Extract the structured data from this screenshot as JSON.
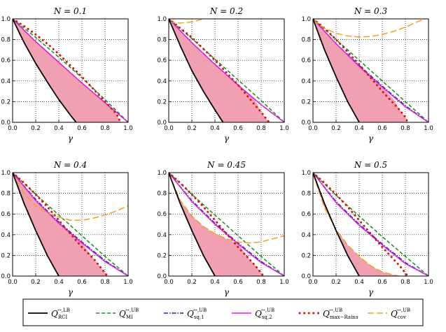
{
  "colors": {
    "rci_lb": "#000000",
    "mi_ub": "#1a8a1a",
    "sq1_ub": "#2020c8",
    "sq2_ub": "#e020e0",
    "maxrains_ub": "#dd1111",
    "cov_ub": "#f5a020",
    "fill": "#f0a0b0"
  },
  "legend": [
    {
      "key": "rci_lb",
      "main": "Q",
      "sub": "RCI",
      "sup": "↔,LB"
    },
    {
      "key": "mi_ub",
      "main": "Q",
      "sub": "MI",
      "sup": "↔,UB"
    },
    {
      "key": "sq1_ub",
      "main": "Q",
      "sub": "sq,1",
      "sup": "↔,UB"
    },
    {
      "key": "sq2_ub",
      "main": "Q",
      "sub": "sq,2",
      "sup": "↔,UB"
    },
    {
      "key": "maxrains_ub",
      "main": "Q",
      "sub": "max−Rains",
      "sup": "↔,UB"
    },
    {
      "key": "cov_ub",
      "main": "Q",
      "sub": "cov",
      "sup": "↔,UB"
    }
  ],
  "chart_data": [
    {
      "type": "line",
      "title": "N = 0.1",
      "xlabel": "γ",
      "xlim": [
        0,
        1
      ],
      "ylim": [
        0,
        1
      ],
      "xticks": [
        "0.0",
        "0.2",
        "0.4",
        "0.6",
        "0.8",
        "1.0"
      ],
      "yticks": [
        "0.0",
        "0.2",
        "0.4",
        "0.6",
        "0.8",
        "1.0"
      ],
      "series": [
        {
          "key": "rci_lb",
          "x": [
            0,
            0.1,
            0.2,
            0.3,
            0.4,
            0.5,
            0.55
          ],
          "y": [
            1,
            0.77,
            0.57,
            0.39,
            0.22,
            0.07,
            0
          ]
        },
        {
          "key": "mi_ub",
          "x": [
            0,
            0.2,
            0.4,
            0.6,
            0.8,
            1.0
          ],
          "y": [
            1,
            0.82,
            0.63,
            0.43,
            0.22,
            0
          ]
        },
        {
          "key": "sq1_ub",
          "x": [
            0,
            0.2,
            0.4,
            0.6,
            0.8,
            1.0
          ],
          "y": [
            1,
            0.78,
            0.58,
            0.38,
            0.19,
            0
          ]
        },
        {
          "key": "sq2_ub",
          "x": [
            0,
            0.2,
            0.4,
            0.6,
            0.8,
            1.0
          ],
          "y": [
            1,
            0.78,
            0.58,
            0.38,
            0.19,
            0
          ]
        },
        {
          "key": "maxrains_ub",
          "x": [
            0,
            0.1,
            0.2,
            0.3,
            0.4,
            0.5,
            0.6,
            0.7,
            0.8,
            0.85,
            0.9,
            0.92,
            0.94
          ],
          "y": [
            1,
            0.93,
            0.85,
            0.76,
            0.66,
            0.55,
            0.44,
            0.32,
            0.2,
            0.14,
            0.08,
            0.03,
            0
          ]
        },
        {
          "key": "fill_upper",
          "x": [
            0,
            0.2,
            0.4,
            0.6,
            0.8,
            0.85,
            0.9,
            0.92,
            0.94
          ],
          "y": [
            1,
            0.78,
            0.58,
            0.38,
            0.19,
            0.14,
            0.08,
            0.03,
            0
          ]
        }
      ]
    },
    {
      "type": "line",
      "title": "N = 0.2",
      "xlabel": "γ",
      "xlim": [
        0,
        1
      ],
      "ylim": [
        0,
        1
      ],
      "xticks": [
        "0.0",
        "0.2",
        "0.4",
        "0.6",
        "0.8",
        "1.0"
      ],
      "yticks": [
        "0.0",
        "0.2",
        "0.4",
        "0.6",
        "0.8",
        "1.0"
      ],
      "series": [
        {
          "key": "rci_lb",
          "x": [
            0,
            0.1,
            0.2,
            0.3,
            0.4,
            0.47
          ],
          "y": [
            1,
            0.74,
            0.5,
            0.3,
            0.12,
            0
          ]
        },
        {
          "key": "mi_ub",
          "x": [
            0,
            0.2,
            0.4,
            0.6,
            0.8,
            1.0
          ],
          "y": [
            1,
            0.81,
            0.61,
            0.41,
            0.21,
            0
          ]
        },
        {
          "key": "sq1_ub",
          "x": [
            0,
            0.2,
            0.4,
            0.6,
            0.8,
            1.0
          ],
          "y": [
            1,
            0.77,
            0.56,
            0.36,
            0.17,
            0
          ]
        },
        {
          "key": "sq2_ub",
          "x": [
            0,
            0.2,
            0.4,
            0.6,
            0.8,
            1.0
          ],
          "y": [
            1,
            0.77,
            0.56,
            0.36,
            0.17,
            0
          ]
        },
        {
          "key": "maxrains_ub",
          "x": [
            0,
            0.1,
            0.2,
            0.3,
            0.4,
            0.5,
            0.6,
            0.7,
            0.75,
            0.8,
            0.84,
            0.87
          ],
          "y": [
            1,
            0.91,
            0.82,
            0.71,
            0.6,
            0.48,
            0.36,
            0.23,
            0.16,
            0.1,
            0.04,
            0
          ]
        },
        {
          "key": "cov_ub",
          "x": [
            0,
            0.1,
            0.2,
            0.3,
            0.35
          ],
          "y": [
            0.97,
            0.96,
            0.97,
            1.0,
            1.03
          ]
        },
        {
          "key": "fill_upper",
          "x": [
            0,
            0.2,
            0.4,
            0.6,
            0.75,
            0.8,
            0.84,
            0.87
          ],
          "y": [
            1,
            0.77,
            0.56,
            0.36,
            0.21,
            0.1,
            0.04,
            0
          ]
        }
      ]
    },
    {
      "type": "line",
      "title": "N = 0.3",
      "xlabel": "γ",
      "xlim": [
        0,
        1
      ],
      "ylim": [
        0,
        1
      ],
      "xticks": [
        "0.0",
        "0.2",
        "0.4",
        "0.6",
        "0.8",
        "1.0"
      ],
      "yticks": [
        "0.0",
        "0.2",
        "0.4",
        "0.6",
        "0.8",
        "1.0"
      ],
      "series": [
        {
          "key": "rci_lb",
          "x": [
            0,
            0.1,
            0.2,
            0.3,
            0.4
          ],
          "y": [
            1,
            0.7,
            0.44,
            0.2,
            0
          ]
        },
        {
          "key": "mi_ub",
          "x": [
            0,
            0.2,
            0.4,
            0.6,
            0.8,
            1.0
          ],
          "y": [
            1,
            0.8,
            0.6,
            0.4,
            0.2,
            0
          ]
        },
        {
          "key": "sq1_ub",
          "x": [
            0,
            0.2,
            0.4,
            0.6,
            0.8,
            1.0
          ],
          "y": [
            1,
            0.76,
            0.55,
            0.35,
            0.16,
            0
          ]
        },
        {
          "key": "sq2_ub",
          "x": [
            0,
            0.2,
            0.4,
            0.6,
            0.8,
            1.0
          ],
          "y": [
            1,
            0.76,
            0.54,
            0.34,
            0.15,
            0
          ]
        },
        {
          "key": "maxrains_ub",
          "x": [
            0,
            0.1,
            0.2,
            0.3,
            0.4,
            0.5,
            0.6,
            0.7,
            0.75,
            0.8,
            0.82
          ],
          "y": [
            1,
            0.91,
            0.8,
            0.68,
            0.56,
            0.43,
            0.3,
            0.18,
            0.12,
            0.05,
            0
          ]
        },
        {
          "key": "cov_ub",
          "x": [
            0,
            0.1,
            0.2,
            0.3,
            0.4,
            0.5,
            0.6,
            0.7,
            0.8,
            0.9,
            0.97
          ],
          "y": [
            0.99,
            0.91,
            0.86,
            0.835,
            0.825,
            0.83,
            0.85,
            0.88,
            0.92,
            0.97,
            1.0
          ]
        },
        {
          "key": "fill_upper",
          "x": [
            0,
            0.2,
            0.4,
            0.6,
            0.7,
            0.75,
            0.8,
            0.82
          ],
          "y": [
            1,
            0.76,
            0.54,
            0.34,
            0.22,
            0.12,
            0.05,
            0
          ]
        }
      ]
    },
    {
      "type": "line",
      "title": "N = 0.4",
      "xlabel": "γ",
      "xlim": [
        0,
        1
      ],
      "ylim": [
        0,
        1
      ],
      "xticks": [
        "0.0",
        "0.2",
        "0.4",
        "0.6",
        "0.8",
        "1.0"
      ],
      "yticks": [
        "0.0",
        "0.2",
        "0.4",
        "0.6",
        "0.8",
        "1.0"
      ],
      "series": [
        {
          "key": "rci_lb",
          "x": [
            0,
            0.1,
            0.2,
            0.3,
            0.4
          ],
          "y": [
            1,
            0.7,
            0.44,
            0.2,
            0
          ]
        },
        {
          "key": "mi_ub",
          "x": [
            0,
            0.2,
            0.4,
            0.6,
            0.8,
            1.0
          ],
          "y": [
            1,
            0.79,
            0.59,
            0.39,
            0.19,
            0
          ]
        },
        {
          "key": "sq1_ub",
          "x": [
            0,
            0.2,
            0.4,
            0.6,
            0.8,
            1.0
          ],
          "y": [
            1,
            0.74,
            0.52,
            0.33,
            0.15,
            0
          ]
        },
        {
          "key": "sq2_ub",
          "x": [
            0,
            0.2,
            0.4,
            0.6,
            0.8,
            1.0
          ],
          "y": [
            1,
            0.73,
            0.51,
            0.32,
            0.14,
            0
          ]
        },
        {
          "key": "maxrains_ub",
          "x": [
            0,
            0.1,
            0.2,
            0.3,
            0.4,
            0.5,
            0.6,
            0.7,
            0.75,
            0.8,
            0.82
          ],
          "y": [
            1,
            0.9,
            0.79,
            0.67,
            0.54,
            0.41,
            0.28,
            0.17,
            0.1,
            0.03,
            0
          ]
        },
        {
          "key": "cov_ub",
          "x": [
            0,
            0.1,
            0.2,
            0.3,
            0.4,
            0.5,
            0.6,
            0.7,
            0.8,
            0.9,
            1.0
          ],
          "y": [
            0.99,
            0.8,
            0.68,
            0.61,
            0.57,
            0.54,
            0.54,
            0.56,
            0.59,
            0.63,
            0.68
          ]
        },
        {
          "key": "fill_upper",
          "x": [
            0,
            0.2,
            0.4,
            0.6,
            0.7,
            0.75,
            0.8,
            0.82
          ],
          "y": [
            1,
            0.73,
            0.51,
            0.32,
            0.17,
            0.1,
            0.03,
            0
          ]
        }
      ]
    },
    {
      "type": "line",
      "title": "N = 0.45",
      "xlabel": "γ",
      "xlim": [
        0,
        1
      ],
      "ylim": [
        0,
        1
      ],
      "xticks": [
        "0.0",
        "0.2",
        "0.4",
        "0.6",
        "0.8",
        "1.0"
      ],
      "yticks": [
        "0.0",
        "0.2",
        "0.4",
        "0.6",
        "0.8",
        "1.0"
      ],
      "series": [
        {
          "key": "rci_lb",
          "x": [
            0,
            0.1,
            0.2,
            0.3,
            0.4
          ],
          "y": [
            1,
            0.7,
            0.44,
            0.2,
            0
          ]
        },
        {
          "key": "mi_ub",
          "x": [
            0,
            0.2,
            0.4,
            0.6,
            0.8,
            1.0
          ],
          "y": [
            1,
            0.79,
            0.59,
            0.39,
            0.19,
            0
          ]
        },
        {
          "key": "sq1_ub",
          "x": [
            0,
            0.2,
            0.4,
            0.6,
            0.8,
            1.0
          ],
          "y": [
            1,
            0.73,
            0.51,
            0.32,
            0.14,
            0
          ]
        },
        {
          "key": "sq2_ub",
          "x": [
            0,
            0.2,
            0.4,
            0.6,
            0.8,
            1.0
          ],
          "y": [
            1,
            0.72,
            0.5,
            0.31,
            0.13,
            0
          ]
        },
        {
          "key": "maxrains_ub",
          "x": [
            0,
            0.1,
            0.2,
            0.3,
            0.4,
            0.5,
            0.6,
            0.7,
            0.75,
            0.8,
            0.82
          ],
          "y": [
            1,
            0.9,
            0.79,
            0.67,
            0.54,
            0.41,
            0.28,
            0.16,
            0.1,
            0.03,
            0
          ]
        },
        {
          "key": "cov_ub",
          "x": [
            0,
            0.1,
            0.2,
            0.3,
            0.4,
            0.5,
            0.6,
            0.7,
            0.8,
            0.9,
            1.0
          ],
          "y": [
            0.99,
            0.73,
            0.58,
            0.48,
            0.41,
            0.36,
            0.33,
            0.32,
            0.33,
            0.36,
            0.39
          ]
        },
        {
          "key": "fill_upper",
          "x": [
            0,
            0.1,
            0.2,
            0.3,
            0.4,
            0.5,
            0.6,
            0.7,
            0.75,
            0.8,
            0.82
          ],
          "y": [
            0.99,
            0.73,
            0.58,
            0.48,
            0.41,
            0.36,
            0.31,
            0.16,
            0.1,
            0.03,
            0
          ]
        }
      ]
    },
    {
      "type": "line",
      "title": "N = 0.5",
      "xlabel": "γ",
      "xlim": [
        0,
        1
      ],
      "ylim": [
        0,
        1
      ],
      "xticks": [
        "0.0",
        "0.2",
        "0.4",
        "0.6",
        "0.8",
        "1.0"
      ],
      "yticks": [
        "0.0",
        "0.2",
        "0.4",
        "0.6",
        "0.8",
        "1.0"
      ],
      "series": [
        {
          "key": "rci_lb",
          "x": [
            0,
            0.1,
            0.2,
            0.3,
            0.4
          ],
          "y": [
            1,
            0.7,
            0.44,
            0.2,
            0
          ]
        },
        {
          "key": "mi_ub",
          "x": [
            0,
            0.2,
            0.4,
            0.6,
            0.8,
            1.0
          ],
          "y": [
            1,
            0.78,
            0.58,
            0.38,
            0.19,
            0
          ]
        },
        {
          "key": "sq1_ub",
          "x": [
            0,
            0.2,
            0.4,
            0.6,
            0.8,
            1.0
          ],
          "y": [
            1,
            0.72,
            0.5,
            0.31,
            0.13,
            0
          ]
        },
        {
          "key": "sq2_ub",
          "x": [
            0,
            0.2,
            0.4,
            0.6,
            0.8,
            1.0
          ],
          "y": [
            1,
            0.71,
            0.49,
            0.3,
            0.12,
            0
          ]
        },
        {
          "key": "maxrains_ub",
          "x": [
            0,
            0.1,
            0.2,
            0.3,
            0.4,
            0.5,
            0.6,
            0.7,
            0.75,
            0.8,
            0.82
          ],
          "y": [
            1,
            0.9,
            0.79,
            0.67,
            0.54,
            0.41,
            0.28,
            0.16,
            0.1,
            0.03,
            0
          ]
        },
        {
          "key": "cov_ub",
          "x": [
            0,
            0.1,
            0.2,
            0.3,
            0.4,
            0.5,
            0.6,
            0.7,
            0.75
          ],
          "y": [
            0.99,
            0.66,
            0.45,
            0.3,
            0.19,
            0.1,
            0.04,
            0.01,
            0
          ]
        },
        {
          "key": "fill_upper",
          "x": [
            0,
            0.1,
            0.2,
            0.3,
            0.4,
            0.5,
            0.6,
            0.7,
            0.75
          ],
          "y": [
            0.99,
            0.66,
            0.45,
            0.3,
            0.19,
            0.1,
            0.04,
            0.01,
            0
          ]
        }
      ]
    }
  ]
}
